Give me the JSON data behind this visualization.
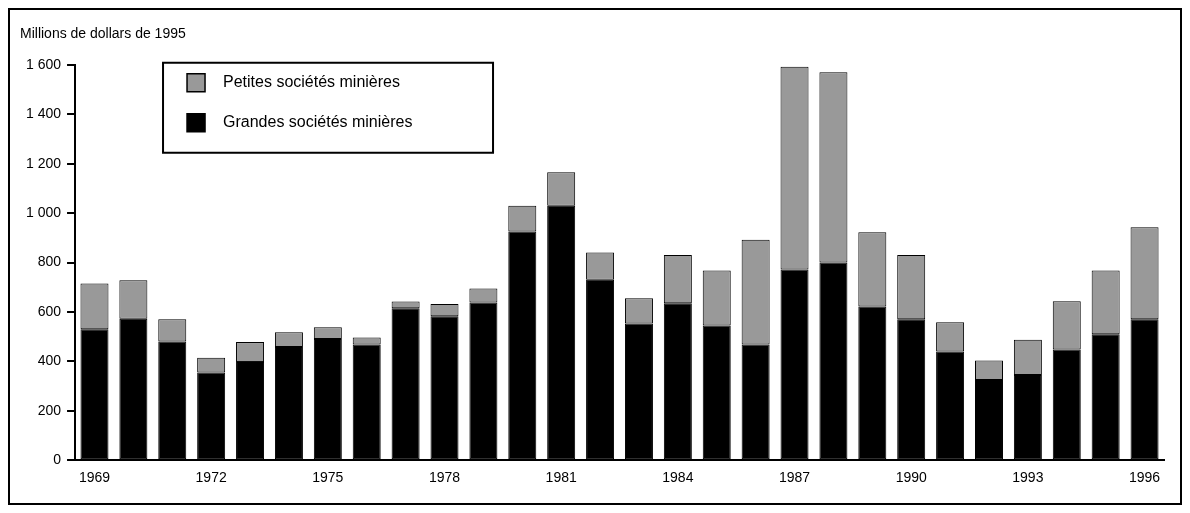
{
  "chart_data": {
    "type": "bar",
    "ylabel": "Millions de dollars de 1995",
    "categories": [
      "1969",
      null,
      null,
      "1972",
      null,
      null,
      "1975",
      null,
      null,
      "1978",
      null,
      null,
      "1981",
      null,
      null,
      "1984",
      null,
      null,
      "1987",
      null,
      null,
      "1990",
      null,
      null,
      "1993",
      null,
      null,
      "1996"
    ],
    "stacked": true,
    "series": [
      {
        "name": "Grandes sociétés minières",
        "color": "#000000",
        "values": [
          530,
          572,
          480,
          355,
          397,
          458,
          490,
          468,
          615,
          582,
          638,
          925,
          1030,
          730,
          553,
          635,
          545,
          468,
          772,
          800,
          622,
          570,
          440,
          325,
          345,
          448,
          510,
          570
        ]
      },
      {
        "name": "Petites sociétés minières",
        "color": "#999999",
        "values": [
          185,
          156,
          90,
          60,
          81,
          60,
          48,
          29,
          27,
          50,
          57,
          105,
          135,
          110,
          102,
          195,
          223,
          424,
          820,
          770,
          300,
          260,
          118,
          78,
          142,
          195,
          258,
          373
        ]
      }
    ],
    "ylim": [
      0,
      1600
    ],
    "yticks": [
      0,
      200,
      400,
      600,
      800,
      {
        "value": 1000,
        "label": "1 000"
      },
      {
        "value": 1200,
        "label": "1 200"
      },
      {
        "value": 1400,
        "label": "1 400"
      },
      {
        "value": 1600,
        "label": "1 600"
      }
    ],
    "grid": false,
    "legend": "top left"
  }
}
